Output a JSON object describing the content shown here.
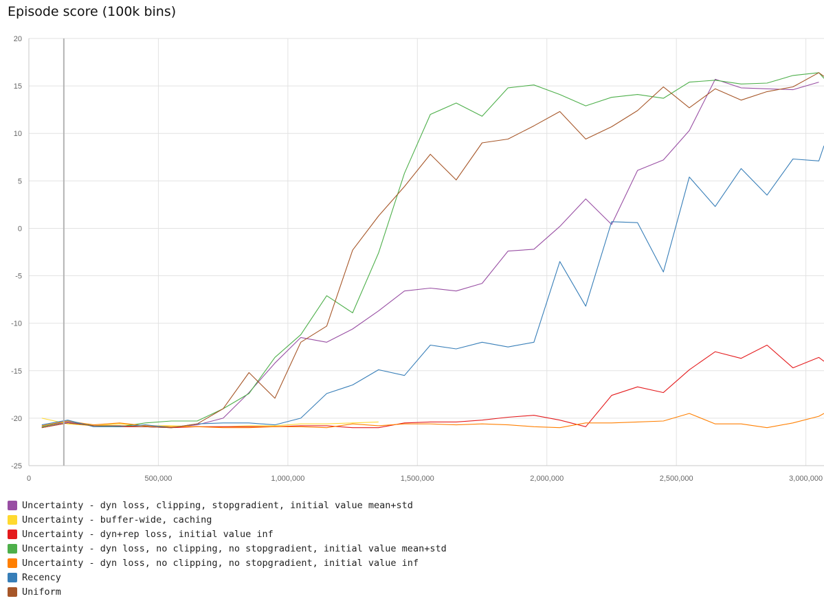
{
  "title": "Episode score (100k bins)",
  "chart_data": {
    "type": "line",
    "title": "Episode score (100k bins)",
    "xlabel": "",
    "ylabel": "",
    "xlim": [
      0,
      3070000
    ],
    "ylim": [
      -25,
      20
    ],
    "x_ticks": [
      0,
      500000,
      1000000,
      1500000,
      2000000,
      2500000,
      3000000
    ],
    "x_tick_labels": [
      "0",
      "500,000",
      "1,000,000",
      "1,500,000",
      "2,000,000",
      "2,500,000",
      "3,000,000"
    ],
    "y_ticks": [
      20,
      15,
      10,
      5,
      0,
      -5,
      -10,
      -15,
      -20,
      -25
    ],
    "y_tick_labels": [
      "20",
      "15",
      "10",
      "5",
      "0",
      "-5",
      "-10",
      "-15",
      "-20",
      "-25"
    ],
    "grid": true,
    "cursor_x": 135000,
    "legend_position": "bottom",
    "series": [
      {
        "name": "Uncertainty - dyn loss, clipping, stopgradient, initial value mean+std",
        "color": "#984ea3",
        "x": [
          50000,
          150000,
          250000,
          350000,
          450000,
          550000,
          650000,
          750000,
          850000,
          950000,
          1050000,
          1150000,
          1250000,
          1350000,
          1450000,
          1550000,
          1650000,
          1750000,
          1850000,
          1950000,
          2050000,
          2150000,
          2250000,
          2350000,
          2450000,
          2550000,
          2650000,
          2750000,
          2850000,
          2950000,
          3050000
        ],
        "y": [
          -20.9,
          -20.4,
          -20.8,
          -20.8,
          -20.9,
          -21.0,
          -20.7,
          -20.0,
          -17.3,
          -14.2,
          -11.5,
          -12.0,
          -10.6,
          -8.7,
          -6.6,
          -6.3,
          -6.6,
          -5.8,
          -2.4,
          -2.2,
          0.2,
          3.1,
          0.4,
          6.1,
          7.2,
          10.3,
          15.7,
          14.8,
          14.7,
          14.6,
          15.4
        ]
      },
      {
        "name": "Uncertainty - buffer-wide, caching",
        "color": "#ffd92f",
        "x": [
          50000,
          150000,
          250000,
          350000,
          450000,
          550000,
          650000,
          750000,
          850000,
          950000,
          1050000,
          1150000,
          1250000,
          1350000
        ],
        "y": [
          -20.0,
          -20.6,
          -20.8,
          -20.6,
          -20.8,
          -20.8,
          -20.9,
          -20.9,
          -20.8,
          -20.8,
          -20.6,
          -20.6,
          -20.5,
          -20.4
        ]
      },
      {
        "name": "Uncertainty - dyn+rep loss, initial value inf",
        "color": "#e41a1c",
        "x": [
          50000,
          150000,
          250000,
          350000,
          450000,
          550000,
          650000,
          750000,
          850000,
          950000,
          1050000,
          1150000,
          1250000,
          1350000,
          1450000,
          1550000,
          1650000,
          1750000,
          1850000,
          1950000,
          2050000,
          2150000,
          2250000,
          2350000,
          2450000,
          2550000,
          2650000,
          2750000,
          2850000,
          2950000,
          3050000,
          3070000
        ],
        "y": [
          -21.0,
          -20.5,
          -20.8,
          -20.9,
          -20.9,
          -21.0,
          -20.9,
          -20.9,
          -20.9,
          -20.9,
          -20.8,
          -20.8,
          -21.0,
          -21.0,
          -20.5,
          -20.4,
          -20.4,
          -20.2,
          -19.9,
          -19.7,
          -20.2,
          -20.9,
          -17.6,
          -16.7,
          -17.3,
          -14.9,
          -13.0,
          -13.7,
          -12.3,
          -14.7,
          -13.6,
          -14.0
        ]
      },
      {
        "name": "Uncertainty - dyn loss, no clipping, no stopgradient, initial value mean+std",
        "color": "#4daf4a",
        "x": [
          50000,
          150000,
          250000,
          350000,
          450000,
          550000,
          650000,
          750000,
          850000,
          950000,
          1050000,
          1150000,
          1250000,
          1350000,
          1450000,
          1550000,
          1650000,
          1750000,
          1850000,
          1950000,
          2050000,
          2150000,
          2250000,
          2350000,
          2450000,
          2550000,
          2650000,
          2750000,
          2850000,
          2950000,
          3050000,
          3070000
        ],
        "y": [
          -20.9,
          -20.3,
          -20.8,
          -20.9,
          -20.5,
          -20.3,
          -20.3,
          -19.0,
          -17.4,
          -13.6,
          -11.2,
          -7.1,
          -8.9,
          -2.6,
          5.8,
          12.0,
          13.2,
          11.8,
          14.8,
          15.1,
          14.1,
          12.9,
          13.8,
          14.1,
          13.7,
          15.4,
          15.6,
          15.2,
          15.3,
          16.1,
          16.4,
          15.8
        ]
      },
      {
        "name": "Uncertainty - dyn loss, no clipping, no stopgradient, initial value inf",
        "color": "#ff7f00",
        "x": [
          50000,
          150000,
          250000,
          350000,
          450000,
          550000,
          650000,
          750000,
          850000,
          950000,
          1050000,
          1150000,
          1250000,
          1350000,
          1450000,
          1550000,
          1650000,
          1750000,
          1850000,
          1950000,
          2050000,
          2150000,
          2250000,
          2350000,
          2450000,
          2550000,
          2650000,
          2750000,
          2850000,
          2950000,
          3050000,
          3070000
        ],
        "y": [
          -20.8,
          -20.3,
          -20.7,
          -20.5,
          -20.8,
          -20.9,
          -20.9,
          -21.0,
          -21.0,
          -20.9,
          -20.9,
          -21.0,
          -20.6,
          -20.8,
          -20.6,
          -20.6,
          -20.7,
          -20.6,
          -20.7,
          -20.9,
          -21.0,
          -20.5,
          -20.5,
          -20.4,
          -20.3,
          -19.5,
          -20.6,
          -20.6,
          -21.0,
          -20.5,
          -19.8,
          -19.5
        ]
      },
      {
        "name": "Recency",
        "color": "#377eb8",
        "x": [
          50000,
          150000,
          250000,
          350000,
          450000,
          550000,
          650000,
          750000,
          850000,
          950000,
          1050000,
          1150000,
          1250000,
          1350000,
          1450000,
          1550000,
          1650000,
          1750000,
          1850000,
          1950000,
          2050000,
          2150000,
          2250000,
          2350000,
          2450000,
          2550000,
          2650000,
          2750000,
          2850000,
          2950000,
          3050000,
          3070000
        ],
        "y": [
          -20.7,
          -20.2,
          -20.9,
          -20.9,
          -20.7,
          -21.0,
          -20.6,
          -20.5,
          -20.5,
          -20.7,
          -20.0,
          -17.4,
          -16.5,
          -14.9,
          -15.5,
          -12.3,
          -12.7,
          -12.0,
          -12.5,
          -12.0,
          -3.5,
          -8.2,
          0.7,
          0.6,
          -4.6,
          5.4,
          2.3,
          6.3,
          3.5,
          7.3,
          7.1,
          8.7
        ]
      },
      {
        "name": "Uniform",
        "color": "#a65628",
        "x": [
          50000,
          150000,
          250000,
          350000,
          450000,
          550000,
          650000,
          750000,
          850000,
          950000,
          1050000,
          1150000,
          1250000,
          1350000,
          1450000,
          1550000,
          1650000,
          1750000,
          1850000,
          1950000,
          2050000,
          2150000,
          2250000,
          2350000,
          2450000,
          2550000,
          2650000,
          2750000,
          2850000,
          2950000,
          3050000,
          3070000
        ],
        "y": [
          -21.0,
          -20.5,
          -20.8,
          -20.8,
          -20.9,
          -21.0,
          -20.6,
          -19.0,
          -15.2,
          -17.9,
          -12.0,
          -10.3,
          -2.3,
          1.3,
          4.4,
          7.8,
          5.1,
          9.0,
          9.4,
          10.8,
          12.3,
          9.4,
          10.7,
          12.4,
          14.9,
          12.7,
          14.7,
          13.5,
          14.4,
          14.9,
          16.4,
          16.0
        ]
      }
    ]
  }
}
